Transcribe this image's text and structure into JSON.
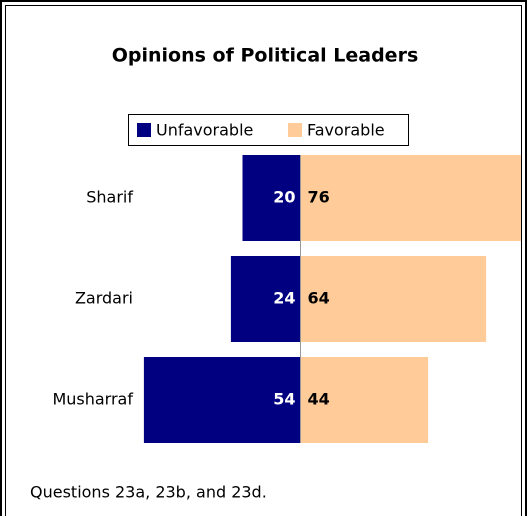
{
  "chart_data": {
    "type": "diverging-bar",
    "title": "Opinions of Political Leaders",
    "categories": [
      "Sharif",
      "Zardari",
      "Musharraf"
    ],
    "series": [
      {
        "name": "Unfavorable",
        "color": "#000080",
        "values": [
          20,
          24,
          54
        ]
      },
      {
        "name": "Favorable",
        "color": "#ffcc99",
        "values": [
          76,
          64,
          44
        ]
      }
    ],
    "note": "Questions 23a, 23b, and 23d."
  }
}
